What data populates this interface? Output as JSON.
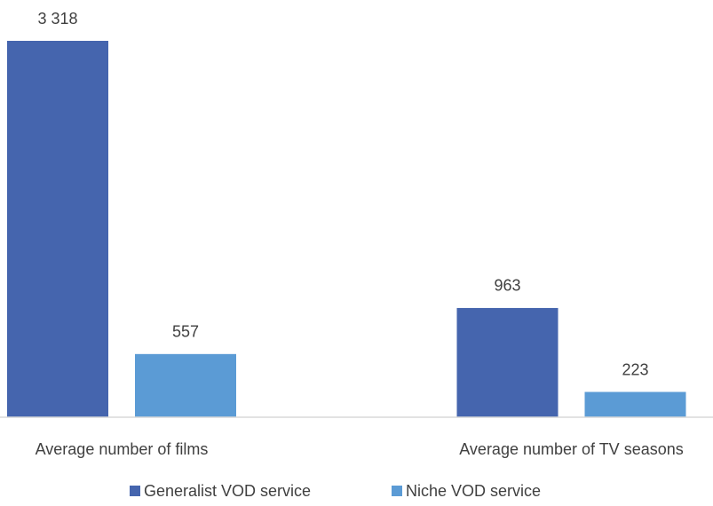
{
  "chart_data": {
    "type": "bar",
    "categories": [
      "Average number of films",
      "Average number of TV seasons"
    ],
    "series": [
      {
        "name": "Generalist VOD service",
        "color": "#4565ae",
        "values": [
          3318,
          963
        ],
        "value_labels": [
          "3 318",
          "963"
        ]
      },
      {
        "name": "Niche VOD service",
        "color": "#5b9bd5",
        "values": [
          557,
          223
        ],
        "value_labels": [
          "557",
          "223"
        ]
      }
    ]
  }
}
